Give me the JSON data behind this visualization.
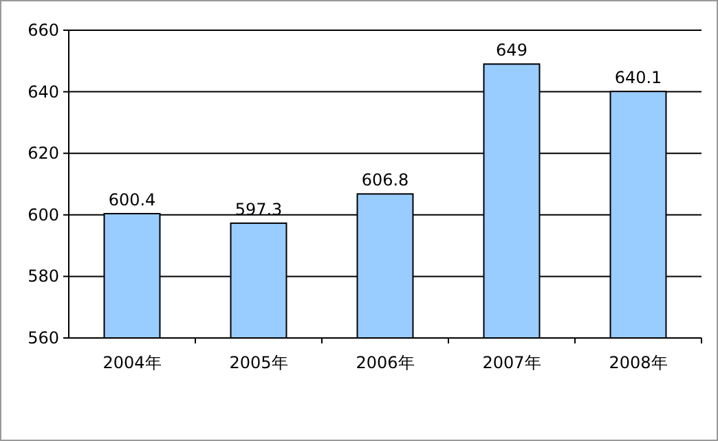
{
  "chart_data": {
    "type": "bar",
    "categories": [
      "2004年",
      "2005年",
      "2006年",
      "2007年",
      "2008年"
    ],
    "values": [
      600.4,
      597.3,
      606.8,
      649,
      640.1
    ],
    "color": "#99ccff",
    "ylim": [
      560,
      660
    ],
    "yticks": [
      560,
      580,
      600,
      620,
      640,
      660
    ],
    "grid": "y",
    "data_labels": true
  }
}
